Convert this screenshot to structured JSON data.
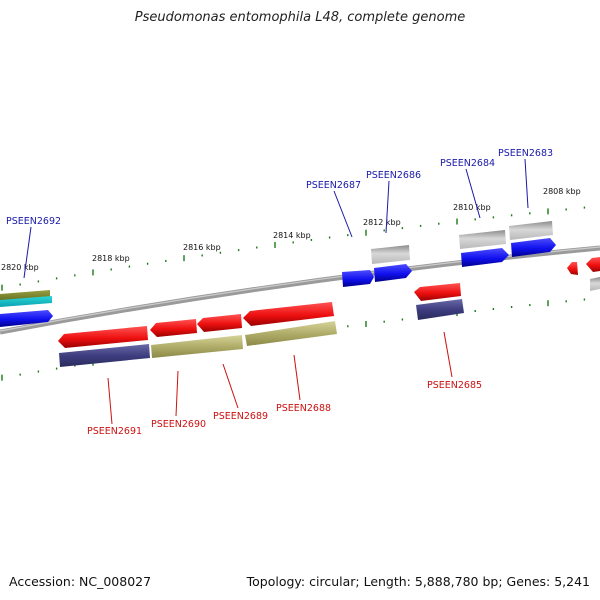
{
  "title": "Pseudomonas entomophila L48, complete genome",
  "footer": {
    "accession": "Accession: NC_008027",
    "summary": "Topology: circular; Length: 5,888,780 bp; Genes: 5,241"
  },
  "colors": {
    "forward_cds": "#1a1aff",
    "reverse_cds": "#ff1a1a",
    "tick": "#1a7a1a",
    "backbone": "#888888",
    "label_top": "#1a1aa8",
    "label_bottom": "#cc1111",
    "gene_gray": "#a8a8a8",
    "gene_navy": "#4a4a8c",
    "gene_olive": "#b0ad6a"
  },
  "kbp_ticks": [
    {
      "label": "2820 kbp"
    },
    {
      "label": "2818 kbp"
    },
    {
      "label": "2816 kbp"
    },
    {
      "label": "2814 kbp"
    },
    {
      "label": "2812 kbp"
    },
    {
      "label": "2810 kbp"
    },
    {
      "label": "2808 kbp"
    }
  ],
  "gene_labels_top": [
    {
      "label": "PSEEN2692"
    },
    {
      "label": "PSEEN2687"
    },
    {
      "label": "PSEEN2686"
    },
    {
      "label": "PSEEN2684"
    },
    {
      "label": "PSEEN2683"
    }
  ],
  "gene_labels_bottom": [
    {
      "label": "PSEEN2691"
    },
    {
      "label": "PSEEN2690"
    },
    {
      "label": "PSEEN2689"
    },
    {
      "label": "PSEEN2688"
    },
    {
      "label": "PSEEN2685"
    }
  ]
}
